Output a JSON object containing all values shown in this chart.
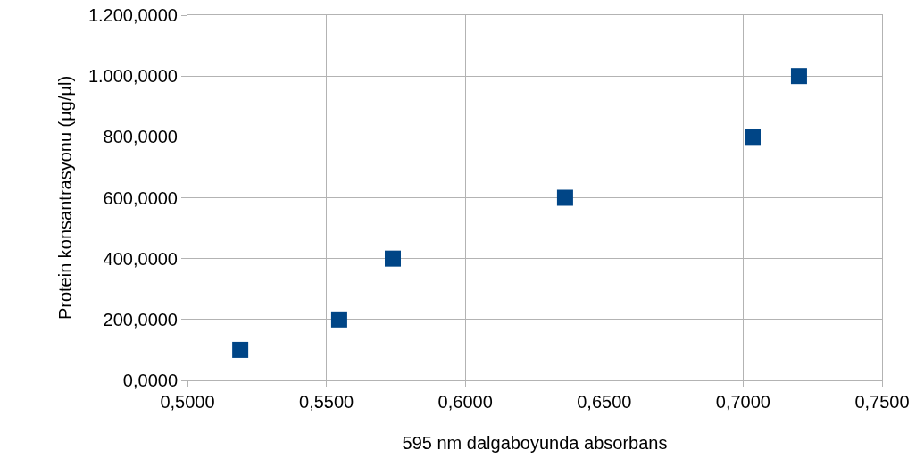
{
  "chart_data": {
    "type": "scatter",
    "xlabel": "595 nm dalgaboyunda absorbans",
    "ylabel": "Protein konsantrasyonu (µg/µl)",
    "x": [
      0.519,
      0.5546,
      0.5739,
      0.6359,
      0.7034,
      0.7201
    ],
    "series": [
      {
        "color": "#004586",
        "values": [
          100,
          200,
          400,
          600,
          800,
          1000
        ]
      }
    ],
    "xlim": [
      0.5,
      0.75
    ],
    "xticks": [
      {
        "value": 0.5,
        "label": "0,5000"
      },
      {
        "value": 0.55,
        "label": "0,5500"
      },
      {
        "value": 0.6,
        "label": "0,6000"
      },
      {
        "value": 0.65,
        "label": "0,6500"
      },
      {
        "value": 0.7,
        "label": "0,7000"
      },
      {
        "value": 0.75,
        "label": "0,7500"
      }
    ],
    "ylim": [
      0,
      1200
    ],
    "yticks": [
      {
        "value": 0,
        "label": "0,0000"
      },
      {
        "value": 200,
        "label": "200,0000"
      },
      {
        "value": 400,
        "label": "400,0000"
      },
      {
        "value": 600,
        "label": "600,0000"
      },
      {
        "value": 800,
        "label": "800,0000"
      },
      {
        "value": 1000,
        "label": "1.000,0000"
      },
      {
        "value": 1200,
        "label": "1.200,0000"
      }
    ],
    "grid": true,
    "legend": false,
    "marker": "square"
  }
}
